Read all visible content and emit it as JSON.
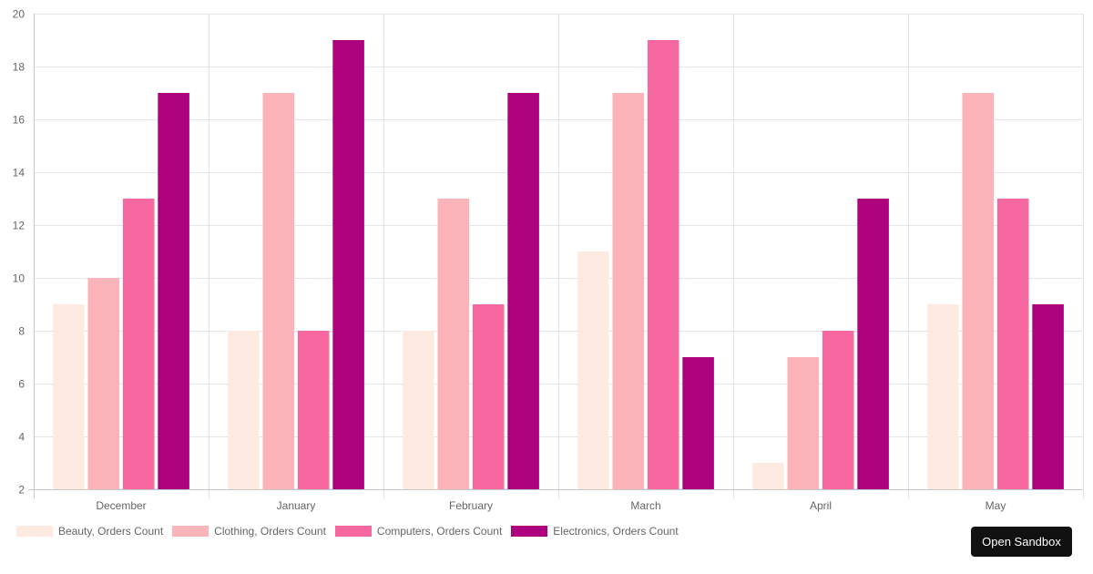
{
  "chart_data": {
    "type": "bar",
    "categories": [
      "December",
      "January",
      "February",
      "March",
      "April",
      "May"
    ],
    "series": [
      {
        "name": "Beauty, Orders Count",
        "color": "#fdebe1",
        "values": [
          9,
          8,
          8,
          11,
          3,
          9
        ]
      },
      {
        "name": "Clothing, Orders Count",
        "color": "#fbb4b9",
        "values": [
          10,
          17,
          13,
          17,
          7,
          17
        ]
      },
      {
        "name": "Computers, Orders Count",
        "color": "#f768a1",
        "values": [
          13,
          8,
          9,
          19,
          8,
          13
        ]
      },
      {
        "name": "Electronics, Orders Count",
        "color": "#ae017e",
        "values": [
          17,
          19,
          17,
          7,
          13,
          9
        ]
      }
    ],
    "ylim": [
      2,
      20
    ],
    "yticks": [
      2,
      4,
      6,
      8,
      10,
      12,
      14,
      16,
      18,
      20
    ],
    "grid": true,
    "legend_position": "bottom-left"
  },
  "actions": {
    "open_sandbox_label": "Open Sandbox"
  }
}
